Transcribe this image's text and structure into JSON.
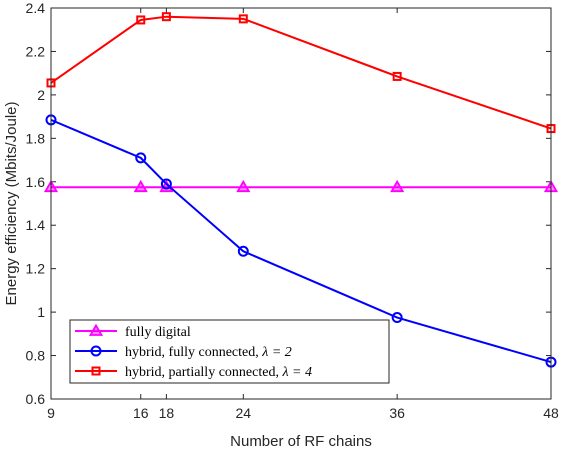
{
  "chart_data": {
    "type": "line",
    "title": "",
    "xlabel": "Number of RF chains",
    "ylabel": "Energy efficiency (Mbits/Joule)",
    "xlim": [
      9,
      48
    ],
    "ylim": [
      0.6,
      2.4
    ],
    "xticks": [
      9,
      16,
      18,
      24,
      36,
      48
    ],
    "yticks": [
      0.6,
      0.8,
      1,
      1.2,
      1.4,
      1.6,
      1.8,
      2,
      2.2,
      2.4
    ],
    "x": [
      9,
      16,
      18,
      24,
      36,
      48
    ],
    "grid": false,
    "legend_position": "bottom-left",
    "series": [
      {
        "name": "fully digital",
        "legend_main": "fully digital",
        "legend_lambda": "",
        "color": "#ff00ff",
        "marker": "triangle",
        "values": [
          1.575,
          1.575,
          1.575,
          1.575,
          1.575,
          1.575
        ]
      },
      {
        "name": "hybrid, fully connected, λ = 2",
        "legend_main": "hybrid, fully connected, ",
        "legend_lambda": "λ = 2",
        "color": "#0000ff",
        "marker": "circle",
        "values": [
          1.885,
          1.71,
          1.59,
          1.28,
          0.975,
          0.77
        ]
      },
      {
        "name": "hybrid, partially connected, λ = 4",
        "legend_main": "hybrid, partially connected, ",
        "legend_lambda": "λ = 4",
        "color": "#ff0000",
        "marker": "square",
        "values": [
          2.055,
          2.345,
          2.36,
          2.35,
          2.085,
          1.845
        ]
      }
    ]
  }
}
